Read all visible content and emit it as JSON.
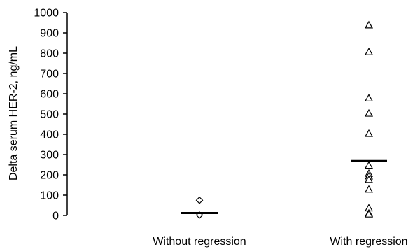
{
  "chart_data": {
    "type": "scatter",
    "ylabel": "Delta serum HER-2, ng/mL",
    "xlabel": "",
    "ylim": [
      0,
      1000
    ],
    "yticks": [
      0,
      100,
      200,
      300,
      400,
      500,
      600,
      700,
      800,
      900,
      1000
    ],
    "grid": false,
    "categories": [
      "Without regression",
      "With regression"
    ],
    "series": [
      {
        "category": "Without regression",
        "marker": "diamond",
        "values": [
          75,
          2
        ],
        "median": 12
      },
      {
        "category": "With regression",
        "marker": "triangle",
        "values": [
          940,
          808,
          580,
          505,
          405,
          248,
          208,
          195,
          178,
          130,
          38,
          12,
          8
        ],
        "median": 268
      }
    ]
  },
  "colors": {
    "axis": "#000000",
    "marker_stroke": "#000000",
    "marker_fill": "#ffffff",
    "background": "#ffffff"
  }
}
